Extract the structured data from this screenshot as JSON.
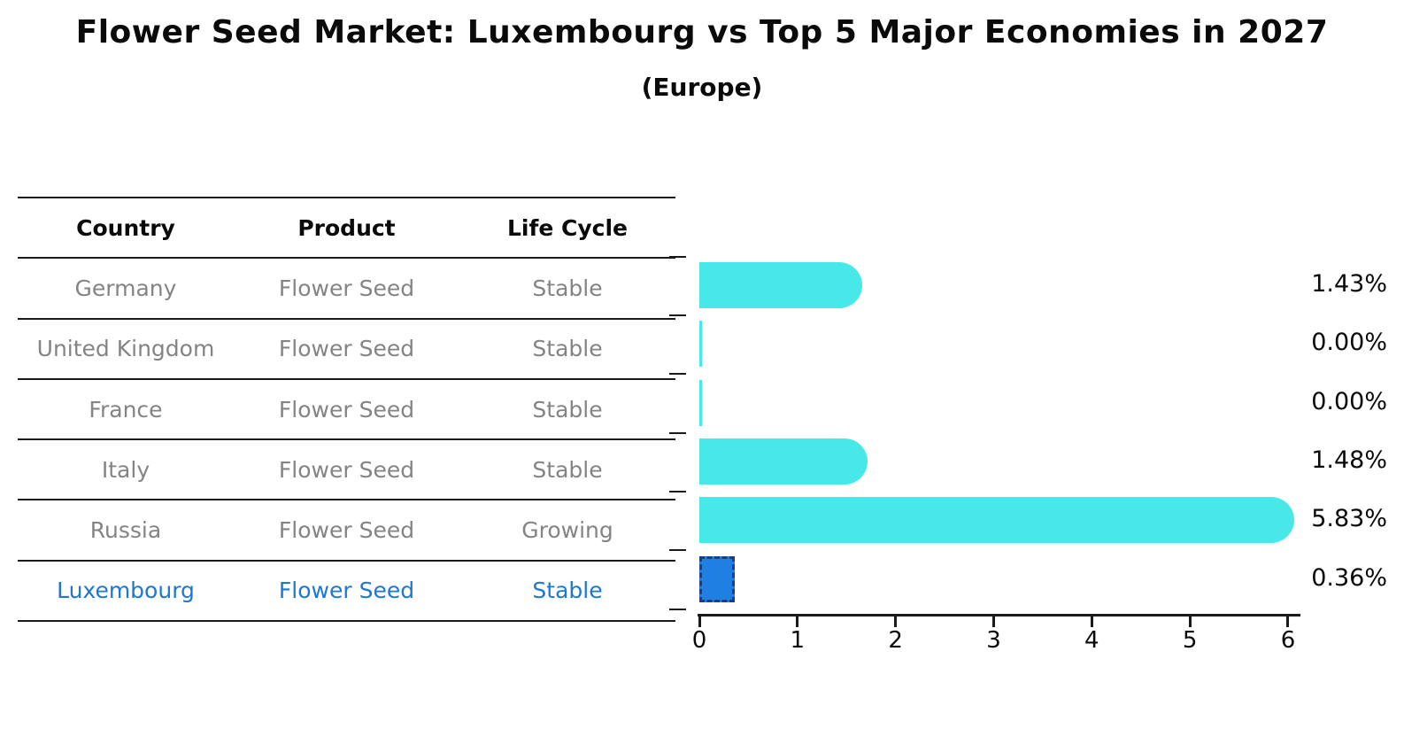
{
  "title": "Flower Seed Market: Luxembourg vs Top 5 Major Economies in 2027",
  "subtitle": "(Europe)",
  "table": {
    "headers": [
      "Country",
      "Product",
      "Life Cycle"
    ],
    "rows": [
      {
        "country": "Germany",
        "product": "Flower Seed",
        "life_cycle": "Stable",
        "highlight": false
      },
      {
        "country": "United Kingdom",
        "product": "Flower Seed",
        "life_cycle": "Stable",
        "highlight": false
      },
      {
        "country": "France",
        "product": "Flower Seed",
        "life_cycle": "Stable",
        "highlight": false
      },
      {
        "country": "Italy",
        "product": "Flower Seed",
        "life_cycle": "Stable",
        "highlight": false
      },
      {
        "country": "Russia",
        "product": "Flower Seed",
        "life_cycle": "Growing",
        "highlight": false
      },
      {
        "country": "Luxembourg",
        "product": "Flower Seed",
        "life_cycle": "Stable",
        "highlight": true
      }
    ]
  },
  "chart_data": {
    "type": "bar",
    "orientation": "horizontal",
    "title": "Flower Seed Market: Luxembourg vs Top 5 Major Economies in 2027",
    "subtitle": "(Europe)",
    "categories": [
      "Germany",
      "United Kingdom",
      "France",
      "Italy",
      "Russia",
      "Luxembourg"
    ],
    "values": [
      1.43,
      0.0,
      0.0,
      1.48,
      5.83,
      0.36
    ],
    "value_labels": [
      "1.43%",
      "0.00%",
      "0.00%",
      "1.48%",
      "5.83%",
      "0.36%"
    ],
    "xlabel": "",
    "ylabel": "",
    "xlim": [
      0,
      6
    ],
    "x_ticks": [
      "0",
      "1",
      "2",
      "3",
      "4",
      "5",
      "6"
    ],
    "grid": false,
    "legend": "none",
    "bar_color": "#49E8E8",
    "highlight_bar_color": "#1F7FE3",
    "highlight_border_color": "#1A3E7E",
    "highlight_index": 5,
    "row_text_color": "#848484",
    "highlight_text_color": "#1C77D6"
  }
}
